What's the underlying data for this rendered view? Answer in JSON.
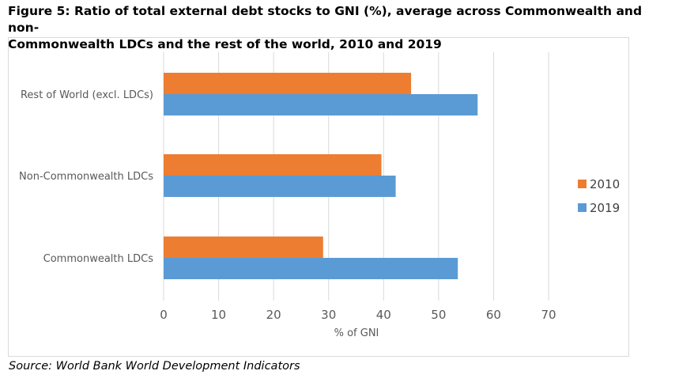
{
  "figure": {
    "title": "Figure 5: Ratio of total external debt stocks to GNI (%), average across Commonwealth and non-\nCommonwealth LDCs and the rest of the world, 2010 and 2019",
    "source": "Source: World Bank World Development Indicators"
  },
  "chart_data": {
    "type": "bar",
    "orientation": "horizontal",
    "title": "",
    "categories": [
      "Commonwealth LDCs",
      "Non-Commonwealth LDCs",
      "Rest of World (excl. LDCs)"
    ],
    "series": [
      {
        "name": "2010",
        "color": "#ED7D31",
        "values": [
          29,
          39.6,
          45
        ]
      },
      {
        "name": "2019",
        "color": "#5B9BD5",
        "values": [
          53.5,
          42.2,
          57.1
        ]
      }
    ],
    "xlabel": "% of GNI",
    "ylabel": "",
    "xlim": [
      0,
      70
    ],
    "xticks": [
      "0",
      "10",
      "20",
      "30",
      "40",
      "50",
      "60",
      "70"
    ],
    "grid": "vertical",
    "legend_position": "right"
  }
}
